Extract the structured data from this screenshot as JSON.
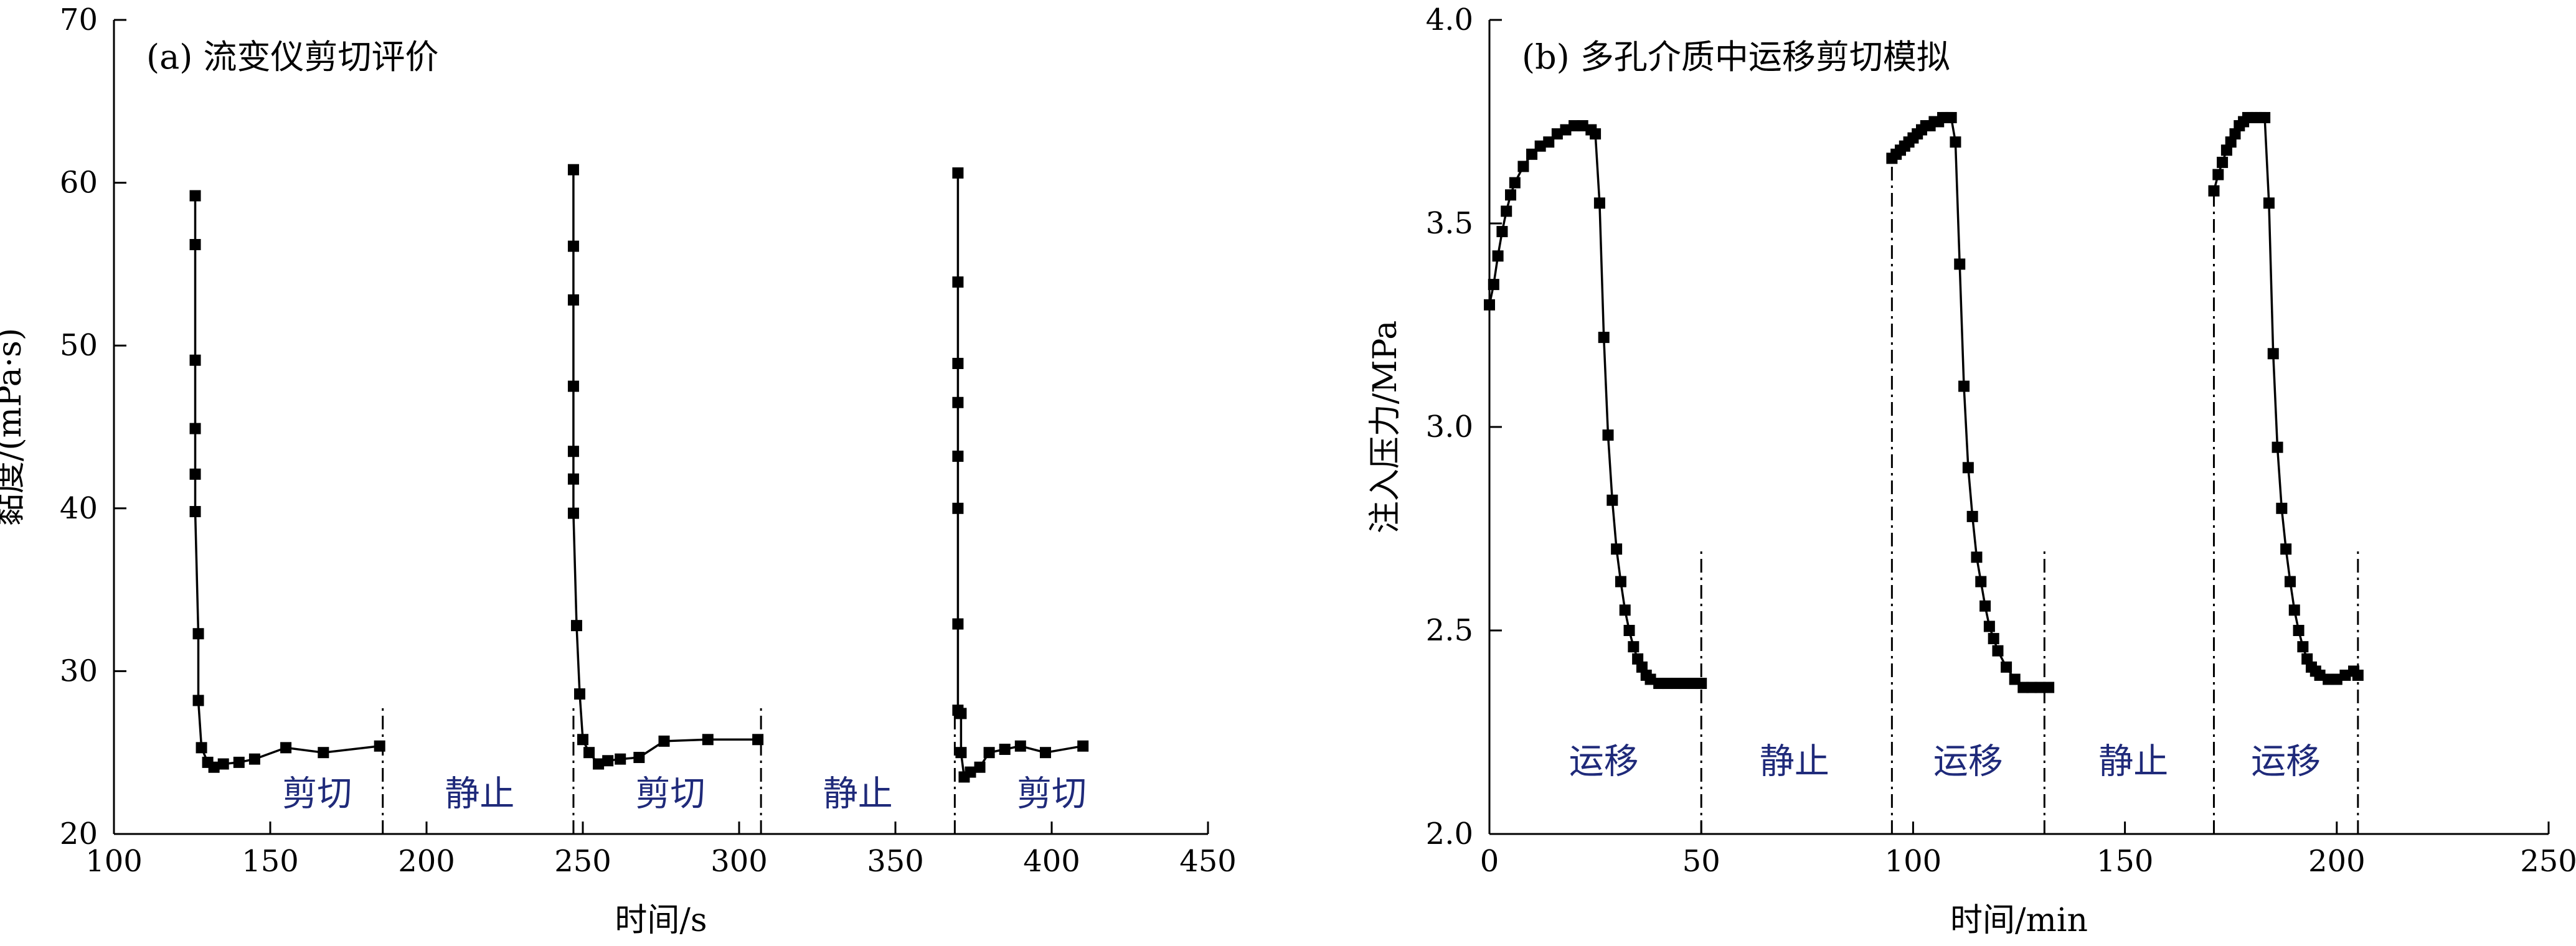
{
  "chart_data": [
    {
      "type": "line",
      "title": "(a) 流变仪剪切评价",
      "xlabel": "时间/s",
      "ylabel": "黏度/(mPa·s)",
      "xlim": [
        100,
        450
      ],
      "ylim": [
        20,
        70
      ],
      "xticks": [
        100,
        150,
        200,
        250,
        300,
        350,
        400,
        450
      ],
      "yticks": [
        20,
        30,
        40,
        50,
        60,
        70
      ],
      "marker": "square",
      "grid": false,
      "series": [
        {
          "x": [
            126,
            126,
            126,
            126,
            126,
            126,
            127,
            127,
            128,
            130,
            132,
            135,
            140,
            145,
            155,
            167,
            185
          ],
          "y": [
            59.2,
            56.2,
            49.1,
            44.9,
            42.1,
            39.8,
            32.3,
            28.2,
            25.3,
            24.4,
            24.1,
            24.3,
            24.4,
            24.6,
            25.3,
            25.0,
            25.4
          ]
        },
        {
          "x": [
            247,
            247,
            247,
            247,
            247,
            247,
            247,
            248,
            249,
            250,
            252,
            255,
            258,
            262,
            268,
            276,
            290,
            306
          ],
          "y": [
            60.8,
            56.1,
            52.8,
            47.5,
            43.5,
            41.8,
            39.7,
            32.8,
            28.6,
            25.8,
            25.0,
            24.3,
            24.5,
            24.6,
            24.7,
            25.7,
            25.8,
            25.8
          ]
        },
        {
          "x": [
            370,
            370,
            370,
            370,
            370,
            370,
            370,
            370,
            371,
            371,
            372,
            374,
            377,
            380,
            385,
            390,
            398,
            410
          ],
          "y": [
            60.6,
            53.9,
            48.9,
            46.5,
            43.2,
            40.0,
            32.9,
            27.6,
            27.4,
            25.0,
            23.5,
            23.8,
            24.1,
            25.0,
            25.2,
            25.4,
            25.0,
            25.4
          ]
        }
      ],
      "vlines": [
        186,
        247,
        307,
        369
      ],
      "annotations": [
        {
          "x": 165,
          "y": 22.5,
          "text": "剪切"
        },
        {
          "x": 217,
          "y": 22.5,
          "text": "静止"
        },
        {
          "x": 278,
          "y": 22.5,
          "text": "剪切"
        },
        {
          "x": 338,
          "y": 22.5,
          "text": "静止"
        },
        {
          "x": 400,
          "y": 22.5,
          "text": "剪切"
        }
      ]
    },
    {
      "type": "line",
      "title": "(b) 多孔介质中运移剪切模拟",
      "xlabel": "时间/min",
      "ylabel": "注入压力/MPa",
      "xlim": [
        0,
        250
      ],
      "ylim": [
        2.0,
        4.0
      ],
      "xticks": [
        0,
        50,
        100,
        150,
        200,
        250
      ],
      "yticks": [
        2.0,
        2.5,
        3.0,
        3.5,
        4.0
      ],
      "ytick_labels": [
        "2.0",
        "2.5",
        "3.0",
        "3.5",
        "4.0"
      ],
      "marker": "square",
      "grid": false,
      "series": [
        {
          "x": [
            0,
            1,
            2,
            3,
            4,
            5,
            6,
            8,
            10,
            12,
            14,
            16,
            18,
            20,
            22,
            24,
            25,
            26,
            27,
            28,
            29,
            30,
            31,
            32,
            33,
            34,
            35,
            36,
            37,
            38,
            40,
            42,
            44,
            46,
            48,
            50
          ],
          "y": [
            3.3,
            3.35,
            3.42,
            3.48,
            3.53,
            3.57,
            3.6,
            3.64,
            3.67,
            3.69,
            3.7,
            3.72,
            3.73,
            3.74,
            3.74,
            3.73,
            3.72,
            3.55,
            3.22,
            2.98,
            2.82,
            2.7,
            2.62,
            2.55,
            2.5,
            2.46,
            2.43,
            2.41,
            2.39,
            2.38,
            2.37,
            2.37,
            2.37,
            2.37,
            2.37,
            2.37
          ]
        },
        {
          "x": [
            95,
            96,
            97,
            98,
            99,
            100,
            101,
            102,
            103,
            104,
            105,
            106,
            107,
            108,
            109,
            110,
            111,
            112,
            113,
            114,
            115,
            116,
            117,
            118,
            119,
            120,
            122,
            124,
            126,
            128,
            130,
            132
          ],
          "y": [
            3.66,
            3.67,
            3.68,
            3.69,
            3.7,
            3.71,
            3.72,
            3.73,
            3.74,
            3.74,
            3.75,
            3.75,
            3.76,
            3.76,
            3.76,
            3.7,
            3.4,
            3.1,
            2.9,
            2.78,
            2.68,
            2.62,
            2.56,
            2.51,
            2.48,
            2.45,
            2.41,
            2.38,
            2.36,
            2.36,
            2.36,
            2.36
          ]
        },
        {
          "x": [
            171,
            172,
            173,
            174,
            175,
            176,
            177,
            178,
            179,
            180,
            181,
            182,
            183,
            184,
            185,
            186,
            187,
            188,
            189,
            190,
            191,
            192,
            193,
            194,
            195,
            196,
            198,
            200,
            202,
            204,
            205
          ],
          "y": [
            3.58,
            3.62,
            3.65,
            3.68,
            3.7,
            3.72,
            3.74,
            3.75,
            3.76,
            3.76,
            3.76,
            3.76,
            3.76,
            3.55,
            3.18,
            2.95,
            2.8,
            2.7,
            2.62,
            2.55,
            2.5,
            2.46,
            2.43,
            2.41,
            2.4,
            2.39,
            2.38,
            2.38,
            2.39,
            2.4,
            2.39
          ]
        }
      ],
      "vlines": [
        {
          "x": 50,
          "y": [
            2.0,
            2.7
          ]
        },
        {
          "x": 95,
          "y": [
            2.0,
            3.68
          ]
        },
        {
          "x": 131,
          "y": [
            2.0,
            2.7
          ]
        },
        {
          "x": 171,
          "y": [
            2.0,
            3.6
          ]
        },
        {
          "x": 205,
          "y": [
            2.0,
            2.7
          ]
        }
      ],
      "annotations": [
        {
          "x": 27,
          "y": 2.18,
          "text": "运移"
        },
        {
          "x": 72,
          "y": 2.18,
          "text": "静止"
        },
        {
          "x": 113,
          "y": 2.18,
          "text": "运移"
        },
        {
          "x": 152,
          "y": 2.18,
          "text": "静止"
        },
        {
          "x": 188,
          "y": 2.18,
          "text": "运移"
        }
      ]
    }
  ]
}
